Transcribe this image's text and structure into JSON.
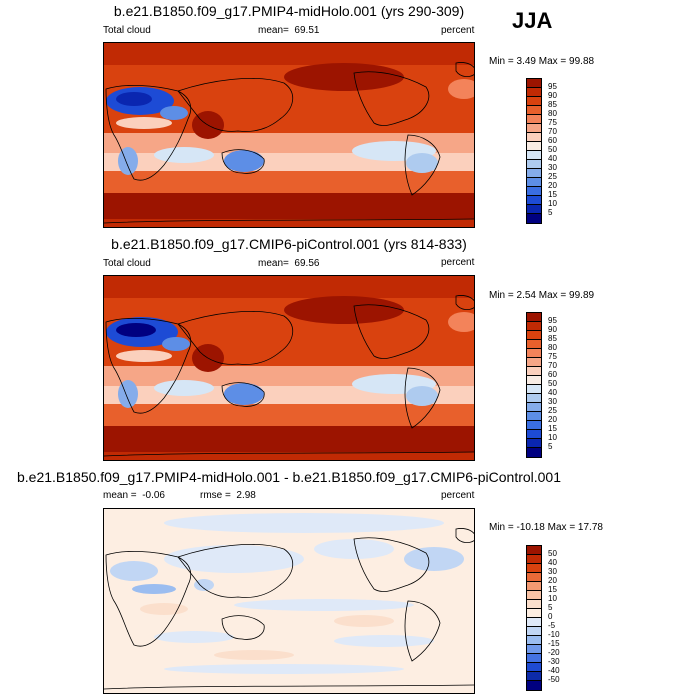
{
  "season": "JJA",
  "chart_data": [
    {
      "type": "heatmap",
      "title": "b.e21.B1850.f09_g17.PMIP4-midHolo.001 (yrs 290-309)",
      "variable": "Total cloud",
      "stat_label": "mean=",
      "stat_value": "69.51",
      "units": "percent",
      "minmax_text": "Min =   3.49 Max =  99.88",
      "min": 3.49,
      "max": 99.88,
      "colorbar_levels": [
        "95",
        "90",
        "85",
        "80",
        "75",
        "70",
        "60",
        "50",
        "40",
        "30",
        "25",
        "20",
        "15",
        "10",
        "5"
      ]
    },
    {
      "type": "heatmap",
      "title": "b.e21.B1850.f09_g17.CMIP6-piControl.001 (yrs 814-833)",
      "variable": "Total cloud",
      "stat_label": "mean=",
      "stat_value": "69.56",
      "units": "percent",
      "minmax_text": "Min =   2.54 Max =  99.89",
      "min": 2.54,
      "max": 99.89,
      "colorbar_levels": [
        "95",
        "90",
        "85",
        "80",
        "75",
        "70",
        "60",
        "50",
        "40",
        "30",
        "25",
        "20",
        "15",
        "10",
        "5"
      ]
    },
    {
      "type": "heatmap",
      "title": "b.e21.B1850.f09_g17.PMIP4-midHolo.001 - b.e21.B1850.f09_g17.CMIP6-piControl.001",
      "stat_label": "mean =",
      "stat_value": "-0.06",
      "stat2_label": "rmse =",
      "stat2_value": "2.98",
      "units": "percent",
      "minmax_text": "Min = -10.18 Max =  17.78",
      "min": -10.18,
      "max": 17.78,
      "colorbar_levels": [
        "50",
        "40",
        "30",
        "20",
        "15",
        "10",
        "5",
        "0",
        "-5",
        "-10",
        "-15",
        "-20",
        "-30",
        "-40",
        "-50"
      ]
    }
  ],
  "colors": {
    "abs_scale": [
      "#9c1400",
      "#c12a04",
      "#d9420f",
      "#e8602c",
      "#f3835a",
      "#f6a687",
      "#fbd0bd",
      "#f8ece4",
      "#d6e6f6",
      "#aecbef",
      "#85acea",
      "#5d8ee6",
      "#3a6ee2",
      "#1d4bd5",
      "#0a26b0",
      "#000080"
    ],
    "diff_scale": [
      "#9c1400",
      "#c12a04",
      "#d9420f",
      "#ea6a38",
      "#f49a72",
      "#f9c3a6",
      "#fbdfcc",
      "#fdeee2",
      "#dfe9f8",
      "#c1d6f4",
      "#9bbdf0",
      "#7099eb",
      "#4472e3",
      "#1f4bd3",
      "#0d2baa",
      "#000080"
    ],
    "coastline": "#000000"
  }
}
